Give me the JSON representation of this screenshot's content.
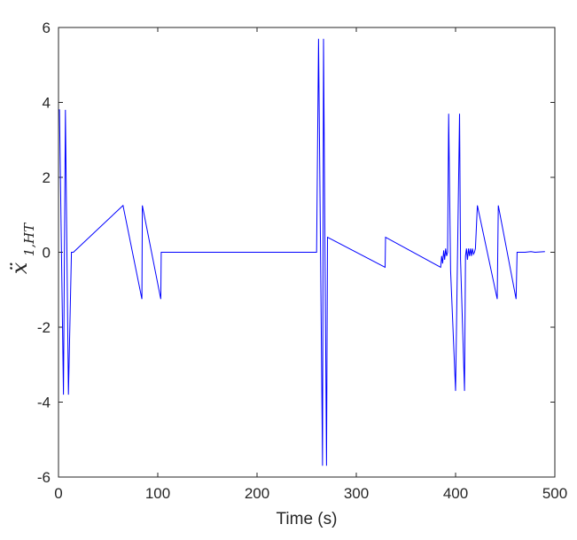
{
  "chart_data": {
    "type": "line",
    "title": "",
    "xlabel": "Time (s)",
    "ylabel": {
      "main": "ẍ",
      "sub": "1,HT"
    },
    "xlim": [
      0,
      500
    ],
    "ylim": [
      -6,
      6
    ],
    "xticks": [
      0,
      100,
      200,
      300,
      400,
      500
    ],
    "yticks": [
      -6,
      -4,
      -2,
      0,
      2,
      4,
      6
    ],
    "grid": false,
    "line_color": "#0000ff",
    "series": [
      {
        "x": [
          0,
          1,
          5,
          7,
          10,
          13,
          15,
          65,
          84,
          84.5,
          103,
          103.5,
          260,
          262,
          266,
          267,
          270,
          271,
          329,
          329.5,
          385,
          386,
          387,
          388,
          389,
          390,
          391,
          392,
          393,
          395,
          400,
          404,
          405,
          409,
          410,
          411,
          412,
          413,
          414,
          415,
          416,
          417,
          418,
          419,
          420,
          422,
          442,
          443,
          461,
          462,
          470,
          476,
          480,
          490
        ],
        "y": [
          3.8,
          3.8,
          -3.8,
          3.8,
          -3.8,
          0,
          0,
          1.25,
          -1.25,
          1.25,
          -1.25,
          0,
          0,
          5.7,
          -5.7,
          5.7,
          -5.7,
          0.4,
          -0.4,
          0.4,
          -0.4,
          -0.1,
          -0.3,
          0.05,
          -0.2,
          0.1,
          -0.1,
          0,
          3.7,
          -0.5,
          -3.7,
          3.7,
          -0.2,
          -3.7,
          -0.1,
          0.1,
          -0.2,
          0.1,
          -0.1,
          0.1,
          -0.1,
          0.1,
          -0.05,
          0,
          0.1,
          1.25,
          -1.25,
          1.25,
          -1.25,
          0,
          0,
          0.02,
          0,
          0.02
        ]
      }
    ]
  }
}
